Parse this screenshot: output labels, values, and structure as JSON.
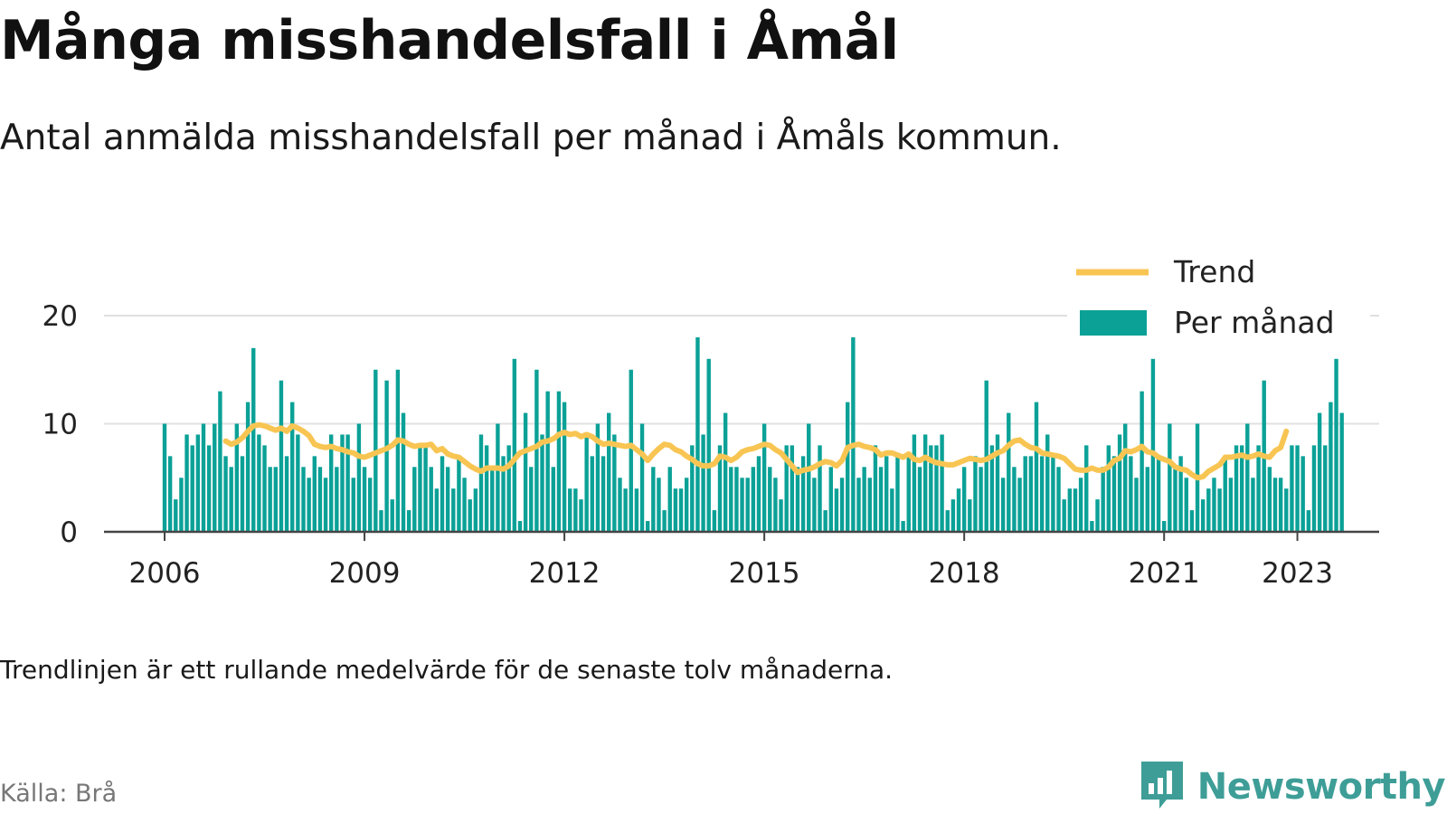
{
  "title": "Många misshandelsfall i Åmål",
  "subtitle": "Antal anmälda misshandelsfall per månad i Åmåls kommun.",
  "note": "Trendlinjen är ett rullande medelvärde för de senaste tolv månaderna.",
  "source": "Källa: Brå",
  "brand": {
    "name": "Newsworthy",
    "logo_icon": "bar-chart-speech-bubble-icon"
  },
  "colors": {
    "bars": "#0ba197",
    "trend": "#f8c553",
    "grid": "#e0e0e0",
    "axis": "#444444",
    "brand": "#3e9e97",
    "highlight": "#bfe6e8"
  },
  "chart_data": {
    "type": "bar",
    "x_start": "2006-01",
    "x_end": "2023-05",
    "x_ticks": [
      "2006",
      "2009",
      "2012",
      "2015",
      "2018",
      "2021",
      "2023"
    ],
    "y_ticks": [
      "0",
      "10",
      "20"
    ],
    "ylim": [
      0,
      25
    ],
    "grid": true,
    "legend_position": "top-right",
    "series": [
      {
        "name": "Per månad",
        "type": "bar",
        "values": [
          10,
          7,
          3,
          5,
          9,
          8,
          9,
          10,
          8,
          10,
          13,
          7,
          6,
          10,
          7,
          12,
          17,
          9,
          8,
          6,
          6,
          14,
          7,
          12,
          9,
          6,
          5,
          7,
          6,
          5,
          9,
          6,
          9,
          9,
          5,
          10,
          6,
          5,
          15,
          2,
          14,
          3,
          15,
          11,
          2,
          6,
          8,
          8,
          6,
          4,
          7,
          6,
          4,
          7,
          5,
          3,
          4,
          9,
          8,
          6,
          10,
          7,
          8,
          16,
          1,
          11,
          6,
          15,
          9,
          13,
          6,
          13,
          12,
          4,
          4,
          3,
          9,
          7,
          10,
          7,
          11,
          9,
          5,
          4,
          15,
          4,
          10,
          1,
          6,
          5,
          2,
          6,
          4,
          4,
          5,
          8,
          18,
          9,
          16,
          2,
          8,
          11,
          6,
          6,
          5,
          5,
          6,
          7,
          10,
          6,
          5,
          3,
          8,
          8,
          6,
          7,
          10,
          5,
          8,
          2,
          6,
          4,
          5,
          12,
          18,
          5,
          6,
          5,
          8,
          6,
          7,
          4,
          7,
          1,
          7,
          9,
          6,
          9,
          8,
          8,
          9,
          2,
          3,
          4,
          6,
          3,
          7,
          6,
          14,
          8,
          9,
          5,
          11,
          6,
          5,
          7,
          7,
          12,
          7,
          9,
          7,
          6,
          3,
          4,
          4,
          5,
          8,
          1,
          3,
          6,
          8,
          7,
          9,
          10,
          7,
          5,
          13,
          6,
          16,
          7,
          1,
          10,
          6,
          7,
          5,
          2,
          10,
          3,
          4,
          5,
          4,
          7,
          5,
          8,
          8,
          10,
          5,
          8,
          14,
          6,
          5,
          5,
          4,
          8,
          8,
          7,
          2,
          8,
          11,
          8,
          12,
          16,
          11
        ]
      },
      {
        "name": "Trend",
        "type": "line",
        "start": "2006-12",
        "values": [
          8.4,
          8.1,
          8.3,
          8.7,
          9.3,
          9.8,
          9.9,
          9.8,
          9.6,
          9.4,
          9.6,
          9.3,
          9.8,
          9.6,
          9.3,
          8.9,
          8.1,
          7.9,
          7.8,
          7.9,
          7.7,
          7.6,
          7.4,
          7.3,
          7.0,
          6.9,
          7.1,
          7.3,
          7.5,
          7.7,
          8.0,
          8.5,
          8.4,
          8.1,
          7.9,
          8.0,
          8.0,
          8.1,
          7.5,
          7.7,
          7.2,
          7.0,
          6.9,
          6.5,
          6.1,
          5.8,
          5.6,
          5.9,
          5.9,
          5.9,
          5.8,
          6.1,
          6.7,
          7.3,
          7.5,
          7.7,
          7.9,
          8.3,
          8.4,
          8.6,
          9.0,
          9.2,
          9.0,
          9.1,
          8.8,
          9.0,
          8.8,
          8.4,
          8.1,
          8.2,
          8.1,
          8.0,
          7.9,
          8.0,
          7.6,
          7.2,
          6.6,
          7.2,
          7.7,
          8.1,
          8.0,
          7.6,
          7.4,
          7.0,
          6.7,
          6.3,
          6.1,
          6.1,
          6.3,
          7.0,
          6.9,
          6.6,
          6.9,
          7.4,
          7.6,
          7.7,
          7.9,
          8.1,
          8.0,
          7.6,
          7.3,
          6.7,
          6.1,
          5.5,
          5.7,
          5.8,
          6.0,
          6.3,
          6.5,
          6.4,
          6.1,
          6.6,
          7.8,
          8.0,
          8.1,
          7.9,
          7.8,
          7.6,
          7.1,
          7.3,
          7.3,
          7.1,
          6.9,
          7.2,
          6.7,
          6.6,
          6.9,
          6.6,
          6.4,
          6.3,
          6.2,
          6.2,
          6.4,
          6.6,
          6.8,
          6.7,
          6.6,
          6.7,
          7.0,
          7.3,
          7.5,
          8.0,
          8.4,
          8.5,
          8.1,
          7.8,
          7.7,
          7.3,
          7.2,
          7.1,
          7.0,
          6.8,
          6.3,
          5.8,
          5.7,
          5.7,
          5.9,
          5.7,
          5.7,
          6.0,
          6.6,
          6.8,
          7.5,
          7.4,
          7.6,
          7.9,
          7.4,
          7.3,
          6.9,
          6.7,
          6.5,
          6.0,
          5.8,
          5.7,
          5.3,
          5.0,
          5.1,
          5.6,
          5.9,
          6.2,
          6.9,
          6.9,
          7.0,
          7.1,
          6.9,
          7.0,
          7.2,
          7.0,
          6.9,
          7.5,
          7.8,
          9.3
        ]
      }
    ]
  }
}
